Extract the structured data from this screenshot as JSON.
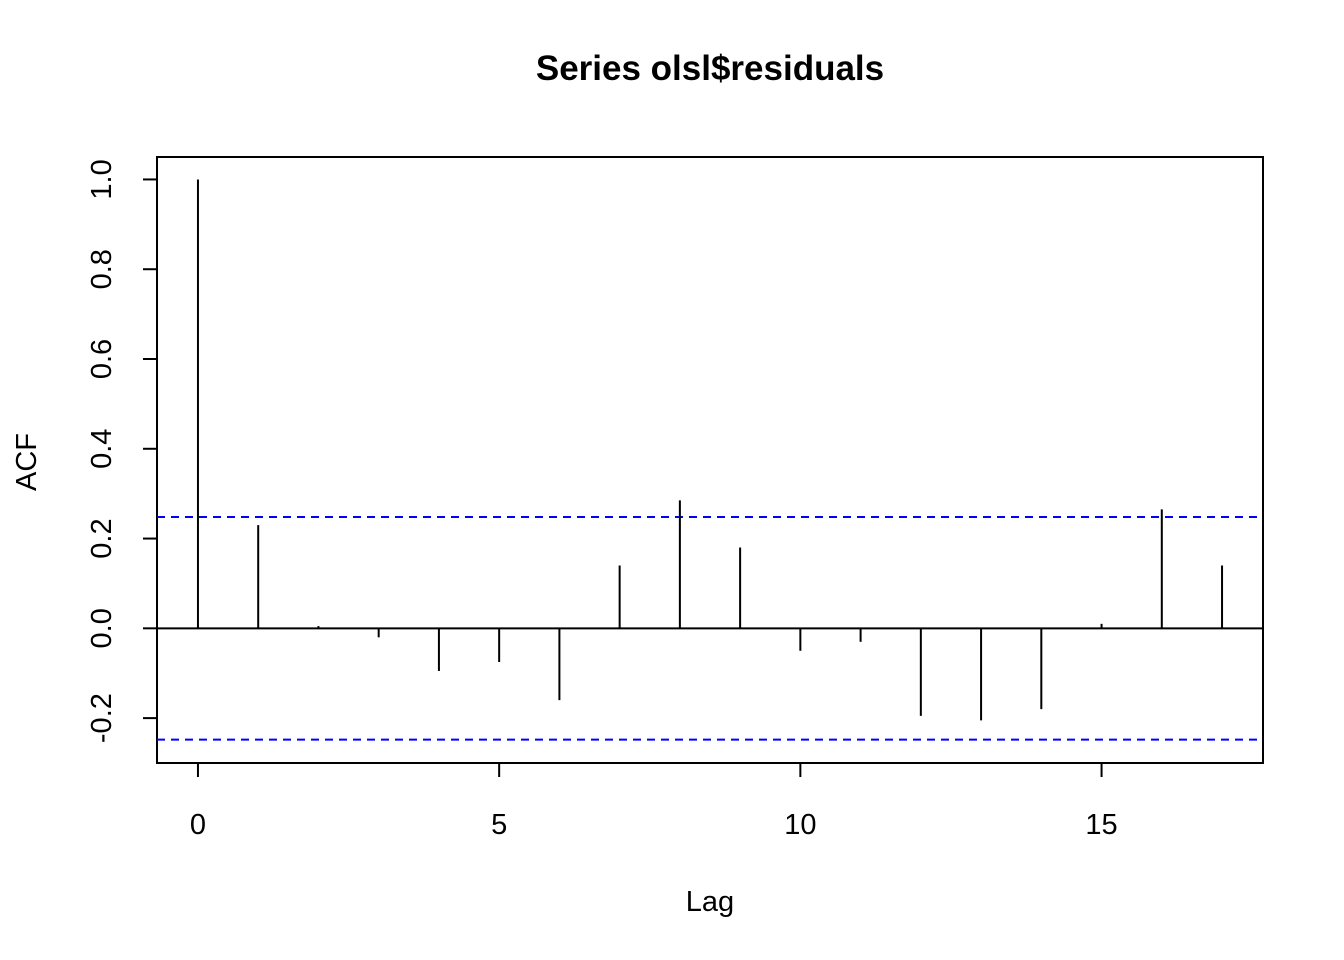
{
  "chart_data": {
    "type": "bar",
    "title": "Series  olsl$residuals",
    "xlabel": "Lag",
    "ylabel": "ACF",
    "xlim": [
      -0.68,
      17.68
    ],
    "ylim": [
      -0.3,
      1.05
    ],
    "x_ticks": [
      0,
      5,
      10,
      15
    ],
    "x_tick_labels": [
      "0",
      "5",
      "10",
      "15"
    ],
    "y_ticks": [
      -0.2,
      0.0,
      0.2,
      0.4,
      0.6,
      0.8,
      1.0
    ],
    "y_tick_labels": [
      "-0.2",
      "0.0",
      "0.2",
      "0.4",
      "0.6",
      "0.8",
      "1.0"
    ],
    "lags": [
      0,
      1,
      2,
      3,
      4,
      5,
      6,
      7,
      8,
      9,
      10,
      11,
      12,
      13,
      14,
      15,
      16,
      17
    ],
    "acf": [
      1.0,
      0.23,
      0.005,
      -0.02,
      -0.095,
      -0.075,
      -0.16,
      0.14,
      0.285,
      0.18,
      -0.05,
      -0.03,
      -0.195,
      -0.205,
      -0.18,
      0.01,
      0.265,
      0.14
    ],
    "confidence_bound": 0.248,
    "colors": {
      "bars": "#000000",
      "bound_lines": "#0000ff",
      "zero_line": "#000000"
    },
    "grid": false
  }
}
